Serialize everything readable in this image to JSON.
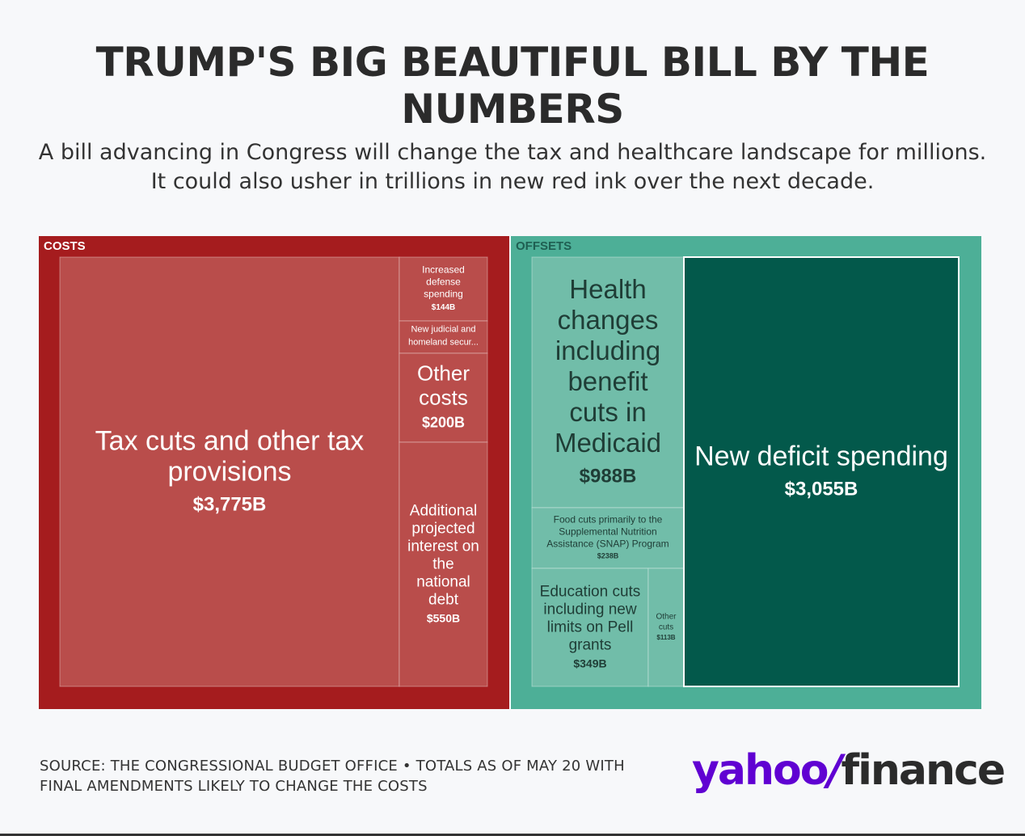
{
  "header": {
    "title": "TRUMP'S BIG BEAUTIFUL BILL BY THE NUMBERS",
    "subtitle": "A bill advancing in Congress will change the tax and healthcare landscape for millions. It could also usher in trillions in new red ink over the next decade."
  },
  "chart_data": {
    "type": "treemap",
    "unit": "$B",
    "groups": [
      {
        "name": "COSTS",
        "color": "#a51c1e",
        "cell_color": "#b94d4b",
        "items": [
          {
            "label": "Tax cuts and other tax provisions",
            "value": 3775,
            "value_label": "$3,775B"
          },
          {
            "label": "Increased defense spending",
            "value": 144,
            "value_label": "$144B"
          },
          {
            "label": "New judicial and homeland secur...",
            "value": 0,
            "value_label": ""
          },
          {
            "label": "Other costs",
            "value": 200,
            "value_label": "$200B"
          },
          {
            "label": "Additional projected interest on the national debt",
            "value": 550,
            "value_label": "$550B"
          }
        ]
      },
      {
        "name": "OFFSETS",
        "color": "#4daf97",
        "cell_color": "#71bda9",
        "items": [
          {
            "label": "Health changes including benefit cuts in Medicaid",
            "value": 988,
            "value_label": "$988B"
          },
          {
            "label": "Food cuts primarily to the Supplemental Nutrition Assistance (SNAP) Program",
            "value": 238,
            "value_label": "$238B"
          },
          {
            "label": "Education cuts including new limits on Pell grants",
            "value": 349,
            "value_label": "$349B"
          },
          {
            "label": "Other cuts",
            "value": 113,
            "value_label": "$113B"
          },
          {
            "label": "New deficit spending",
            "value": 3055,
            "value_label": "$3,055B",
            "color": "#03594b"
          }
        ]
      }
    ]
  },
  "footer": {
    "source": "SOURCE: THE CONGRESSIONAL BUDGET OFFICE • TOTALS AS OF MAY 20 WITH FINAL AMENDMENTS LIKELY TO CHANGE THE COSTS",
    "logo_yahoo": "yahoo",
    "logo_slash": "/",
    "logo_finance": "finance"
  }
}
